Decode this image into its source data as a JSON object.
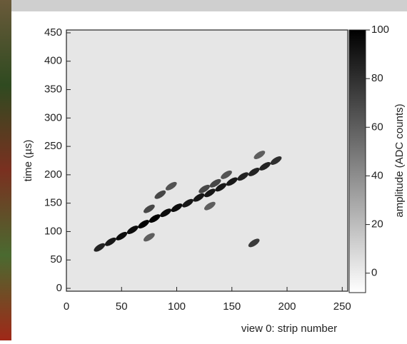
{
  "chart_data": {
    "type": "scatter",
    "xlabel": "view 0: strip number",
    "ylabel": "time (µs)",
    "xlim": [
      0,
      255
    ],
    "xticks": [
      0,
      50,
      100,
      150,
      200,
      250
    ],
    "ylim": [
      -5,
      455
    ],
    "yticks": [
      0,
      50,
      100,
      150,
      200,
      250,
      300,
      350,
      400,
      450
    ],
    "x": [
      30,
      40,
      50,
      60,
      70,
      80,
      90,
      100,
      110,
      120,
      130,
      140,
      150,
      160,
      170,
      180,
      190,
      75,
      85,
      95,
      125,
      135,
      145,
      175,
      170,
      75,
      130
    ],
    "y": [
      72,
      82,
      92,
      103,
      113,
      123,
      133,
      142,
      150,
      160,
      168,
      178,
      188,
      197,
      205,
      215,
      225,
      140,
      165,
      180,
      175,
      185,
      200,
      235,
      80,
      90,
      145
    ],
    "values": [
      85,
      90,
      95,
      95,
      100,
      100,
      95,
      95,
      90,
      90,
      90,
      90,
      90,
      85,
      85,
      85,
      80,
      70,
      70,
      65,
      70,
      70,
      65,
      60,
      75,
      60,
      60
    ],
    "colorbar": {
      "label": "amplitude (ADC counts)",
      "lim": [
        -8,
        100
      ],
      "ticks": [
        0,
        20,
        40,
        60,
        80,
        100
      ]
    }
  }
}
